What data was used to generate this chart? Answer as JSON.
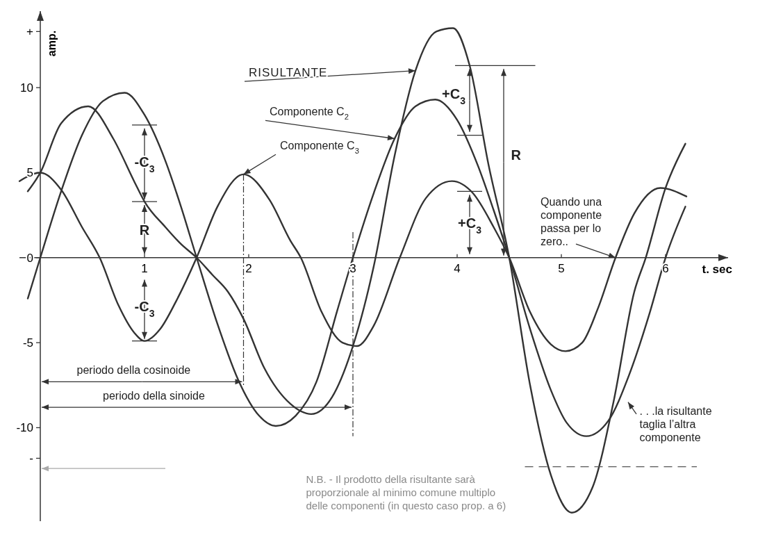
{
  "chart_data": {
    "type": "line",
    "xlabel": "t. sec",
    "ylabel": "amp.",
    "xlim": [
      -0.2,
      6.6
    ],
    "ylim": [
      -15.5,
      14.5
    ],
    "xticks": [
      1,
      2,
      3,
      4,
      5,
      6
    ],
    "yticks": [
      {
        "value": -11.8,
        "label": "-"
      },
      -10,
      -5,
      0,
      5,
      10,
      {
        "value": 13.3,
        "label": "+"
      }
    ],
    "grid": false,
    "legend": false,
    "marker": "none",
    "line_style": "solid",
    "series": [
      {
        "color": "#333333",
        "x": [
          -0.12,
          0,
          0.2,
          0.46,
          0.7,
          0.9,
          1.0,
          1.2,
          1.35,
          1.5,
          1.65,
          1.8,
          1.95,
          2.15,
          2.4,
          2.6,
          2.8,
          3.0,
          3.2,
          3.4,
          3.6,
          3.8,
          3.96,
          4.12,
          4.3,
          4.5,
          4.7,
          4.9,
          5.1,
          5.3,
          5.5,
          5.7,
          5.81,
          6.0,
          6.19
        ],
        "values": [
          3.9,
          5,
          7.9,
          8.9,
          7.0,
          4.5,
          3.3,
          1.8,
          0.8,
          0,
          -1.0,
          -2.0,
          -3.6,
          -6.5,
          -8.6,
          -9.2,
          -8.2,
          -5.2,
          -0.5,
          6.0,
          11.0,
          13.3,
          13.5,
          11.3,
          5.5,
          0,
          -7.5,
          -12.8,
          -15,
          -13.5,
          -8.5,
          -2.0,
          0,
          4.1,
          6.7
        ]
      },
      {
        "color": "#333333",
        "x": [
          -0.12,
          0,
          0.2,
          0.4,
          0.6,
          0.81,
          1.0,
          1.2,
          1.35,
          1.5,
          1.7,
          1.9,
          2.1,
          2.26,
          2.45,
          2.65,
          2.85,
          3.0,
          3.2,
          3.4,
          3.6,
          3.79,
          4.0,
          4.2,
          4.35,
          4.5,
          4.7,
          4.9,
          5.05,
          5.24,
          5.45,
          5.65,
          5.85,
          6.0,
          6.19
        ],
        "values": [
          -2.4,
          0,
          3.9,
          7.2,
          9.2,
          9.7,
          8.4,
          5.7,
          3.0,
          0,
          -3.9,
          -7.2,
          -9.3,
          -9.9,
          -9.3,
          -7.3,
          -3.1,
          0,
          3.8,
          7.0,
          8.9,
          9.3,
          8.1,
          5.4,
          2.8,
          0,
          -4.2,
          -7.8,
          -9.7,
          -10.5,
          -9.6,
          -6.9,
          -3.2,
          0,
          3.0
        ]
      },
      {
        "color": "#333333",
        "x": [
          -0.2,
          0,
          0.2,
          0.4,
          0.57,
          0.75,
          0.9,
          1.0,
          1.15,
          1.3,
          1.5,
          1.7,
          1.95,
          2.2,
          2.4,
          2.5,
          2.7,
          2.9,
          3.04,
          3.2,
          3.45,
          3.7,
          3.95,
          4.15,
          4.35,
          4.5,
          4.7,
          4.9,
          5.04,
          5.2,
          5.35,
          5.52,
          5.7,
          5.95,
          6.2
        ],
        "values": [
          4.5,
          5,
          4.0,
          1.8,
          0,
          -2.8,
          -4.4,
          -4.9,
          -4.2,
          -2.6,
          0,
          3.0,
          4.9,
          3.4,
          1.0,
          0,
          -3.2,
          -5.0,
          -5.2,
          -4.0,
          0,
          3.5,
          4.5,
          3.8,
          1.8,
          0,
          -3.2,
          -5.1,
          -5.5,
          -5.0,
          -3.0,
          0,
          2.6,
          4.1,
          3.6
        ]
      }
    ],
    "ref_lines": [
      {
        "axis": "x",
        "value": 1.95,
        "line_style": "dashed"
      },
      {
        "axis": "x",
        "value": 3,
        "line_style": "dashed"
      }
    ],
    "annotations": [
      {
        "text": "RISULTANTE",
        "x": 3.6,
        "y": 11.0
      },
      {
        "text": "Componente C$_{2}$",
        "x": 3.4,
        "y": 7.0
      },
      {
        "text": "Componente C$_{3}$",
        "x": 1.95,
        "y": 4.9
      },
      {
        "text": "-C$_{3}$",
        "x": 1.0,
        "y": 3.3
      },
      "R",
      {
        "text": "-C$_{3}$",
        "x": 1.0,
        "y": -4.9
      },
      "+C$_{3}$",
      "+C$_{3}$",
      {
        "text": "R",
        "x": 4.5,
        "y": 0
      },
      {
        "text": "periodo della cosinoide",
        "x": 1.95,
        "y": -7.3
      },
      {
        "text": "periodo della sinoide",
        "x": 3,
        "y": -8.8
      },
      {
        "text": "Quando una componente passa per lo zero..",
        "x": 5.52,
        "y": 0
      },
      ". . .la risultante taglia l’altra componente",
      "N.B. - Il prodotto della risultante sarà proporzionale al minimo comune multiplo delle componenti (in questo caso prop. a 6)"
    ]
  }
}
